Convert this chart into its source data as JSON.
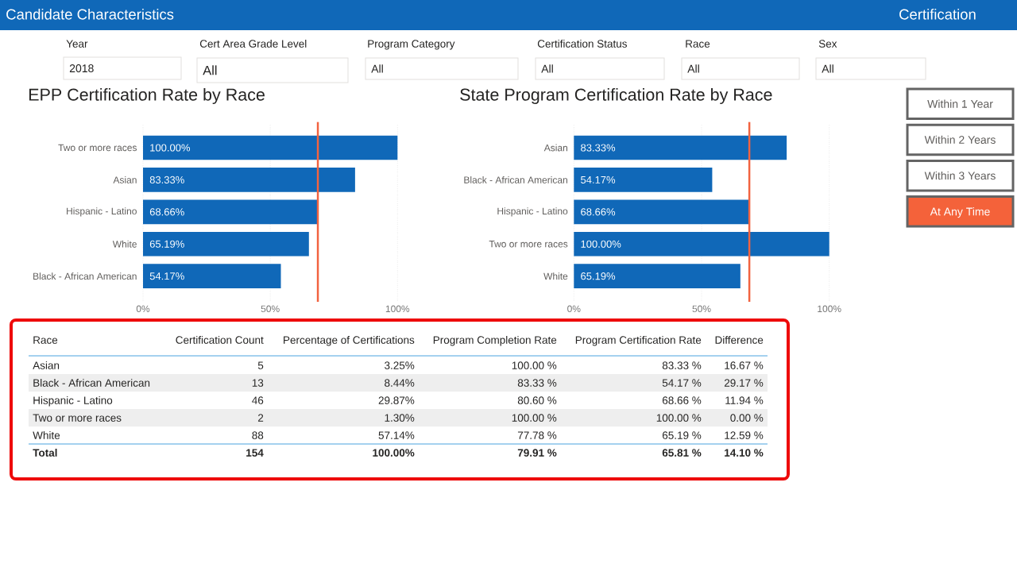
{
  "chart_data": [
    {
      "type": "other",
      "title": "Candidate Characteristics",
      "annotations": [
        "Certification",
        "Year",
        "2018",
        "Cert Area Grade Level",
        "All",
        "Program Category",
        "All",
        "Certification Status",
        "All",
        "Race",
        "All",
        "Sex",
        "All"
      ]
    },
    {
      "type": "bar",
      "orientation": "horizontal",
      "title": "EPP Certification Rate by Race",
      "categories": [
        "Two or more races",
        "Asian",
        "Hispanic - Latino",
        "White",
        "Black - African American"
      ],
      "values": [
        100,
        83.33,
        68.66,
        65.19,
        54.17
      ],
      "value_labels": [
        "100.00%",
        "83.33%",
        "68.66%",
        "65.19%",
        "54.17%"
      ],
      "color": "#1068b8",
      "xlim": [
        0,
        100
      ],
      "xticks": [
        {
          "value": 0,
          "label": "0%"
        },
        {
          "value": 50,
          "label": "50%"
        },
        {
          "value": 100,
          "label": "100%"
        }
      ],
      "grid": "x",
      "ref_lines": [
        {
          "axis": "x",
          "value": 68.7,
          "color": "#f26340"
        }
      ]
    },
    {
      "type": "bar",
      "orientation": "horizontal",
      "title": "State Program Certification Rate by Race",
      "categories": [
        "Asian",
        "Black - African American",
        "Hispanic - Latino",
        "Two or more races",
        "White"
      ],
      "values": [
        83.33,
        54.17,
        68.66,
        100,
        65.19
      ],
      "value_labels": [
        "83.33%",
        "54.17%",
        "68.66%",
        "100.00%",
        "65.19%"
      ],
      "color": "#1068b8",
      "xlim": [
        0,
        100
      ],
      "xticks": [
        {
          "value": 0,
          "label": "0%"
        },
        {
          "value": 50,
          "label": "50%"
        },
        {
          "value": 100,
          "label": "100%"
        }
      ],
      "grid": "x",
      "ref_lines": [
        {
          "axis": "x",
          "value": 68.7,
          "color": "#f26340"
        }
      ]
    },
    {
      "type": "other",
      "categories": [
        "Within 1 Year",
        "Within 2 Years",
        "Within 3 Years",
        "At Any Time"
      ],
      "colors": [
        "#ffffff",
        "#ffffff",
        "#ffffff",
        "#f4623a"
      ]
    },
    {
      "type": "other",
      "annotations": [
        "Race",
        "Certification Count",
        "Percentage of Certifications",
        "Program Completion Rate",
        "Program Certification Rate",
        "Difference",
        "Asian",
        "5",
        "3.25%",
        "100.00 %",
        "83.33 %",
        "16.67 %",
        "Black - African American",
        "13",
        "8.44%",
        "83.33 %",
        "54.17 %",
        "29.17 %",
        "Hispanic - Latino",
        "46",
        "29.87%",
        "80.60 %",
        "68.66 %",
        "11.94 %",
        "Two or more races",
        "2",
        "1.30%",
        "100.00 %",
        "100.00 %",
        "0.00 %",
        "White",
        "88",
        "57.14%",
        "77.78 %",
        "65.19 %",
        "12.59 %",
        "Total",
        "154",
        "100.00%",
        "79.91 %",
        "65.81 %",
        "14.10 %"
      ]
    }
  ]
}
